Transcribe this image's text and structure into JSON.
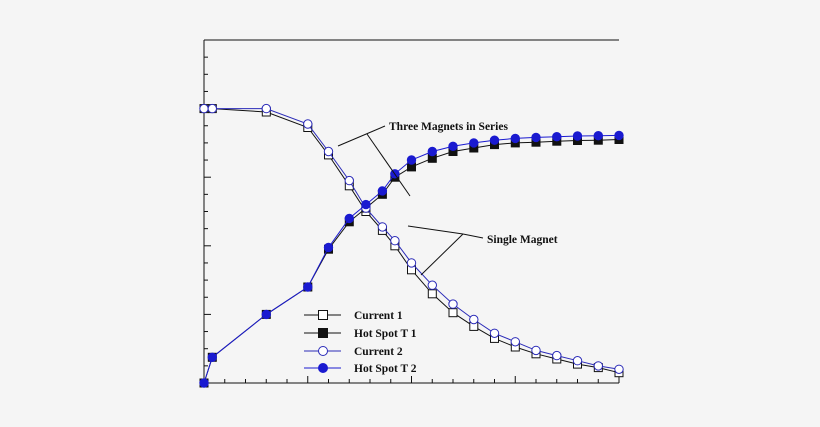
{
  "chart_data": {
    "type": "line",
    "title": "",
    "xlabel": "",
    "ylabel": "",
    "xlim": [
      0,
      20
    ],
    "ylim": [
      0,
      100
    ],
    "grid": false,
    "legend_placement": "bottom-left",
    "x": [
      0,
      0.4,
      3,
      5,
      6,
      7,
      7.8,
      8.6,
      9.2,
      10,
      11,
      12,
      13,
      14,
      15,
      16,
      17,
      18,
      19,
      20
    ],
    "series": [
      {
        "name": "Current 1",
        "color": "#111111",
        "marker": "square-open",
        "values": [
          80,
          80,
          79,
          74.5,
          66.5,
          57.5,
          50,
          44.5,
          40,
          33,
          26,
          20.5,
          16.5,
          13,
          10.5,
          8.5,
          7,
          5.5,
          4.5,
          3
        ]
      },
      {
        "name": "Hot Spot T 1",
        "color": "#111111",
        "marker": "square-filled",
        "values": [
          0,
          7.5,
          20,
          28,
          39,
          47,
          51,
          55,
          60,
          63,
          65.5,
          67.5,
          68.5,
          69.5,
          70,
          70.2,
          70.5,
          70.7,
          70.8,
          71
        ]
      },
      {
        "name": "Current 2",
        "color": "#2b2bb8",
        "marker": "circle-open",
        "values": [
          80,
          80,
          80,
          75.5,
          67.5,
          59,
          51,
          45.5,
          41.5,
          35,
          28.5,
          23,
          18.5,
          14.5,
          12,
          9.5,
          8,
          6.5,
          5,
          4
        ]
      },
      {
        "name": "Hot Spot T 2",
        "color": "#1a1ad0",
        "marker": "circle-filled",
        "values": [
          0,
          7.5,
          20,
          28,
          39.5,
          48,
          52,
          56,
          61,
          65,
          67.5,
          69,
          70,
          70.8,
          71.3,
          71.6,
          71.8,
          72,
          72.1,
          72.2
        ]
      }
    ],
    "annotations": [
      "Three Magnets in Series",
      "Single Magnet"
    ]
  }
}
